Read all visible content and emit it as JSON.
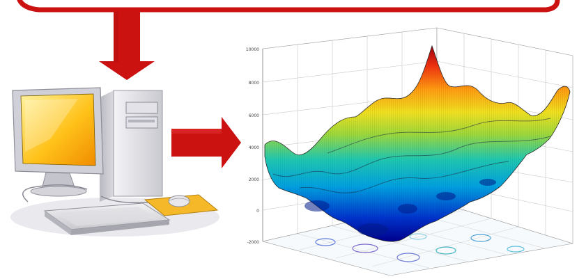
{
  "diagram": {
    "colors": {
      "arrow": "#cc1111",
      "monitor_screen": "#ffc21a",
      "tower": "#e8e8ec",
      "mousepad": "#f5b829"
    },
    "icons": [
      "down-arrow-icon",
      "right-arrow-icon",
      "computer-icon"
    ]
  },
  "chart_data": {
    "type": "surface",
    "z_ticks": [
      "10000",
      "8000",
      "6000",
      "4000",
      "2000",
      "0",
      "-2000"
    ],
    "zlim": [
      -2000,
      10000
    ],
    "grid": true,
    "colormap": "jet"
  }
}
